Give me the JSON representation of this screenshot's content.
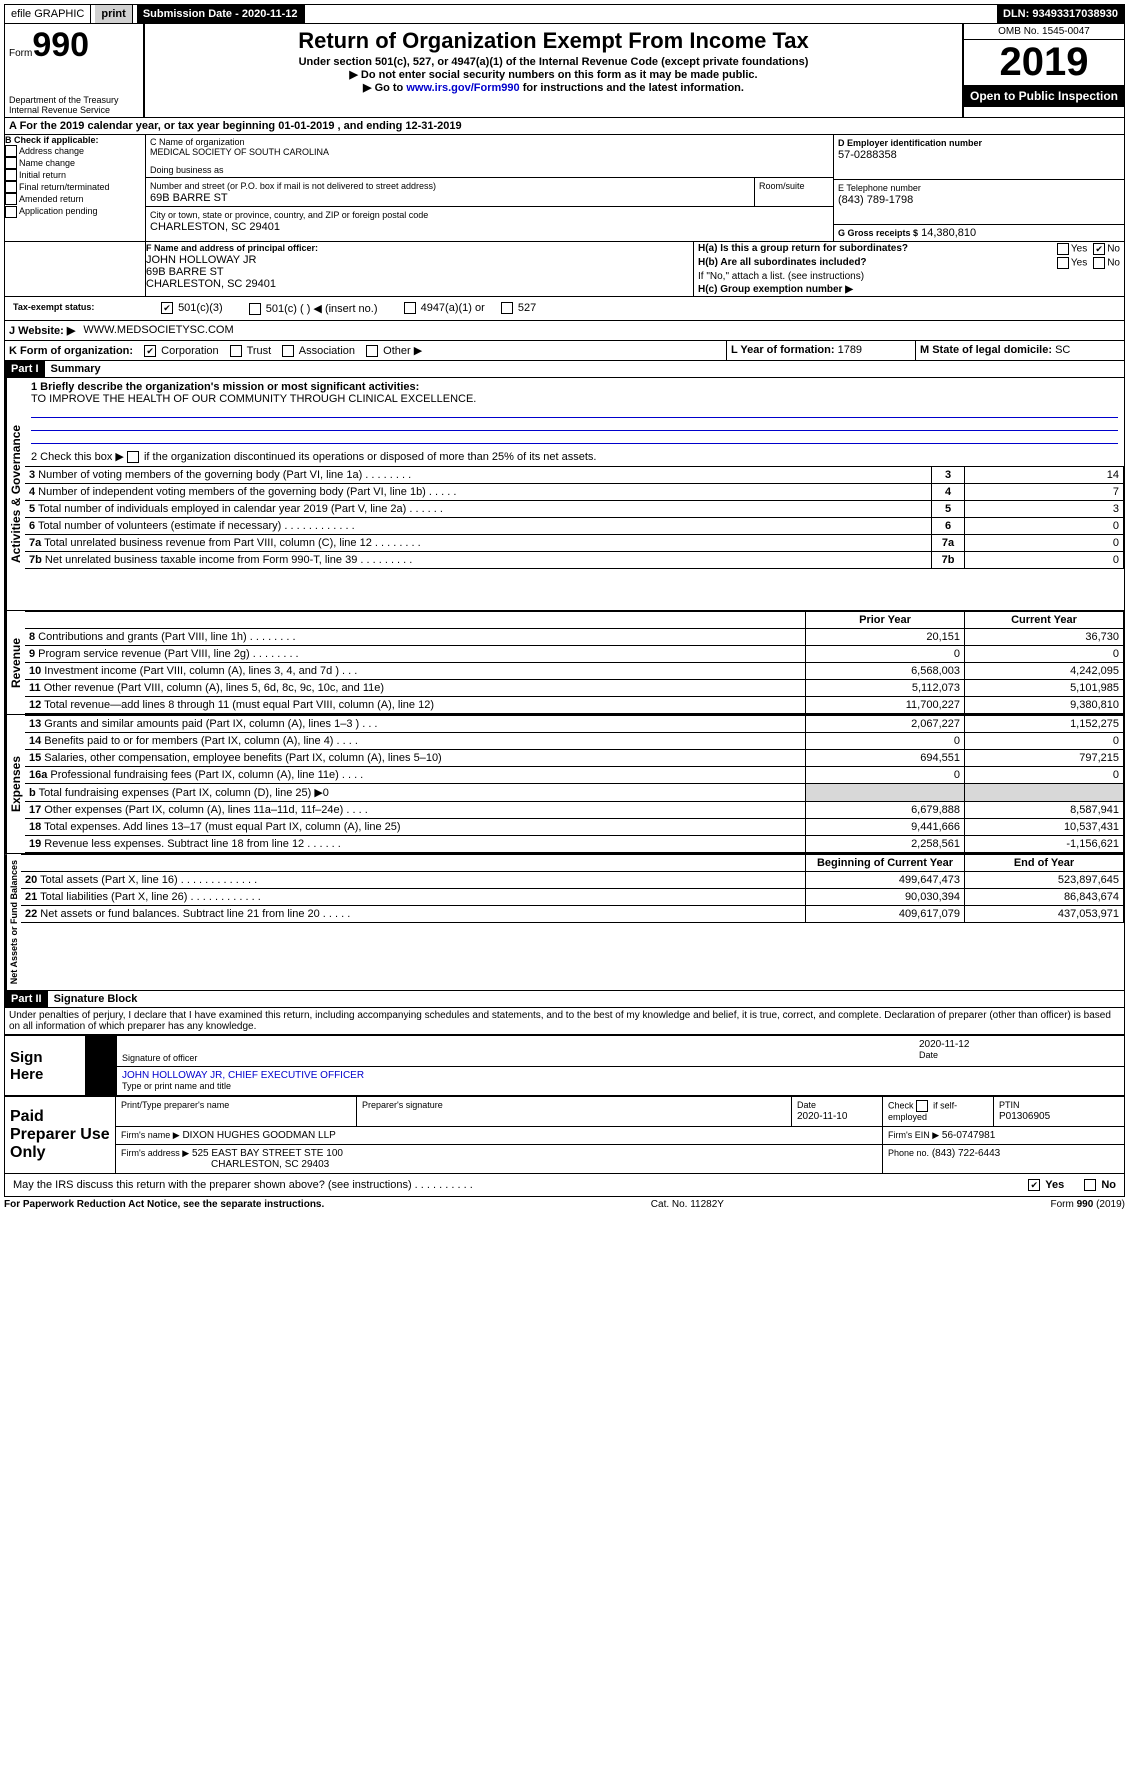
{
  "topbar": {
    "efile": "efile GRAPHIC",
    "print": "print",
    "submission_label": "Submission Date -",
    "submission_date": "2020-11-12",
    "dln_label": "DLN:",
    "dln": "93493317038930"
  },
  "header": {
    "form_word": "Form",
    "form_num": "990",
    "dept": "Department of the Treasury",
    "irs": "Internal Revenue Service",
    "title": "Return of Organization Exempt From Income Tax",
    "sub1": "Under section 501(c), 527, or 4947(a)(1) of the Internal Revenue Code (except private foundations)",
    "sub2": "▶ Do not enter social security numbers on this form as it may be made public.",
    "sub3_pre": "▶ Go to ",
    "sub3_link": "www.irs.gov/Form990",
    "sub3_post": " for instructions and the latest information.",
    "omb": "OMB No. 1545-0047",
    "year": "2019",
    "open": "Open to Public Inspection"
  },
  "period": {
    "label_a": "A For the 2019 calendar year, or tax year beginning ",
    "begin": "01-01-2019",
    "mid": " , and ending ",
    "end": "12-31-2019"
  },
  "boxB": {
    "label": "B Check if applicable:",
    "items": [
      "Address change",
      "Name change",
      "Initial return",
      "Final return/terminated",
      "Amended return",
      "Application pending"
    ]
  },
  "boxC": {
    "name_label": "C Name of organization",
    "name": "MEDICAL SOCIETY OF SOUTH CAROLINA",
    "dba_label": "Doing business as",
    "addr_label": "Number and street (or P.O. box if mail is not delivered to street address)",
    "room_label": "Room/suite",
    "addr": "69B BARRE ST",
    "city_label": "City or town, state or province, country, and ZIP or foreign postal code",
    "city": "CHARLESTON, SC  29401"
  },
  "boxD": {
    "label": "D Employer identification number",
    "val": "57-0288358"
  },
  "boxE": {
    "label": "E Telephone number",
    "val": "(843) 789-1798"
  },
  "boxG": {
    "label": "G Gross receipts $",
    "val": "14,380,810"
  },
  "boxF": {
    "label": "F  Name and address of principal officer:",
    "name": "JOHN HOLLOWAY JR",
    "addr1": "69B BARRE ST",
    "addr2": "CHARLESTON, SC  29401"
  },
  "boxH": {
    "a": "H(a)  Is this a group return for subordinates?",
    "b": "H(b)  Are all subordinates included?",
    "note": "If \"No,\" attach a list. (see instructions)",
    "c": "H(c)  Group exemption number ▶",
    "yes": "Yes",
    "no": "No"
  },
  "boxI": {
    "label": "Tax-exempt status:",
    "o1": "501(c)(3)",
    "o2": "501(c) (   ) ◀ (insert no.)",
    "o3": "4947(a)(1) or",
    "o4": "527"
  },
  "boxJ": {
    "label": "J   Website: ▶",
    "val": "WWW.MEDSOCIETYSC.COM"
  },
  "boxK": {
    "label": "K Form of organization:",
    "o1": "Corporation",
    "o2": "Trust",
    "o3": "Association",
    "o4": "Other ▶"
  },
  "boxL": {
    "label": "L Year of formation:",
    "val": "1789"
  },
  "boxM": {
    "label": "M State of legal domicile:",
    "val": "SC"
  },
  "part1": {
    "tag": "Part I",
    "title": "Summary"
  },
  "summary": {
    "q1": "1  Briefly describe the organization's mission or most significant activities:",
    "mission": "TO IMPROVE THE HEALTH OF OUR COMMUNITY THROUGH CLINICAL EXCELLENCE.",
    "q2_pre": "2  Check this box ▶",
    "q2": " if the organization discontinued its operations or disposed of more than 25% of its net assets.",
    "lines_ag": [
      {
        "n": "3",
        "t": "Number of voting members of the governing body (Part VI, line 1a)   .    .    .    .    .    .    .    .",
        "v": "14"
      },
      {
        "n": "4",
        "t": "Number of independent voting members of the governing body (Part VI, line 1b)   .    .    .    .    .",
        "v": "7"
      },
      {
        "n": "5",
        "t": "Total number of individuals employed in calendar year 2019 (Part V, line 2a)   .    .    .    .    .    .",
        "v": "3"
      },
      {
        "n": "6",
        "t": "Total number of volunteers (estimate if necessary)   .    .    .    .    .    .    .    .    .    .    .    .",
        "v": "0"
      },
      {
        "n": "7a",
        "t": "Total unrelated business revenue from Part VIII, column (C), line 12   .    .    .    .    .    .    .    .",
        "v": "0"
      },
      {
        "n": "7b",
        "t": "Net unrelated business taxable income from Form 990-T, line 39   .    .    .    .    .    .    .    .    .",
        "v": "0"
      }
    ],
    "col_prior": "Prior Year",
    "col_current": "Current Year",
    "rev": [
      {
        "n": "8",
        "t": "Contributions and grants (Part VIII, line 1h)   .    .    .    .    .    .    .    .",
        "p": "20,151",
        "c": "36,730"
      },
      {
        "n": "9",
        "t": "Program service revenue (Part VIII, line 2g)   .    .    .    .    .    .    .    .",
        "p": "0",
        "c": "0"
      },
      {
        "n": "10",
        "t": "Investment income (Part VIII, column (A), lines 3, 4, and 7d )   .    .    .",
        "p": "6,568,003",
        "c": "4,242,095"
      },
      {
        "n": "11",
        "t": "Other revenue (Part VIII, column (A), lines 5, 6d, 8c, 9c, 10c, and 11e)",
        "p": "5,112,073",
        "c": "5,101,985"
      },
      {
        "n": "12",
        "t": "Total revenue—add lines 8 through 11 (must equal Part VIII, column (A), line 12)",
        "p": "11,700,227",
        "c": "9,380,810"
      }
    ],
    "exp": [
      {
        "n": "13",
        "t": "Grants and similar amounts paid (Part IX, column (A), lines 1–3 )   .    .    .",
        "p": "2,067,227",
        "c": "1,152,275"
      },
      {
        "n": "14",
        "t": "Benefits paid to or for members (Part IX, column (A), line 4)   .    .    .    .",
        "p": "0",
        "c": "0"
      },
      {
        "n": "15",
        "t": "Salaries, other compensation, employee benefits (Part IX, column (A), lines 5–10)",
        "p": "694,551",
        "c": "797,215"
      },
      {
        "n": "16a",
        "t": "Professional fundraising fees (Part IX, column (A), line 11e)   .    .    .    .",
        "p": "0",
        "c": "0"
      },
      {
        "n": "b",
        "t": "Total fundraising expenses (Part IX, column (D), line 25) ▶0",
        "p": "",
        "c": ""
      },
      {
        "n": "17",
        "t": "Other expenses (Part IX, column (A), lines 11a–11d, 11f–24e)   .    .    .    .",
        "p": "6,679,888",
        "c": "8,587,941"
      },
      {
        "n": "18",
        "t": "Total expenses. Add lines 13–17 (must equal Part IX, column (A), line 25)",
        "p": "9,441,666",
        "c": "10,537,431"
      },
      {
        "n": "19",
        "t": "Revenue less expenses. Subtract line 18 from line 12   .    .    .    .    .    .",
        "p": "2,258,561",
        "c": "-1,156,621"
      }
    ],
    "col_begin": "Beginning of Current Year",
    "col_end": "End of Year",
    "net": [
      {
        "n": "20",
        "t": "Total assets (Part X, line 16)   .    .    .    .    .    .    .    .    .    .    .    .    .",
        "p": "499,647,473",
        "c": "523,897,645"
      },
      {
        "n": "21",
        "t": "Total liabilities (Part X, line 26)   .    .    .    .    .    .    .    .    .    .    .    .",
        "p": "90,030,394",
        "c": "86,843,674"
      },
      {
        "n": "22",
        "t": "Net assets or fund balances. Subtract line 21 from line 20   .    .    .    .    .",
        "p": "409,617,079",
        "c": "437,053,971"
      }
    ],
    "side_ag": "Activities & Governance",
    "side_rev": "Revenue",
    "side_exp": "Expenses",
    "side_net": "Net Assets or Fund Balances"
  },
  "part2": {
    "tag": "Part II",
    "title": "Signature Block"
  },
  "perjury": "Under penalties of perjury, I declare that I have examined this return, including accompanying schedules and statements, and to the best of my knowledge and belief, it is true, correct, and complete. Declaration of preparer (other than officer) is based on all information of which preparer has any knowledge.",
  "sign": {
    "here": "Sign Here",
    "sig_label": "Signature of officer",
    "date": "2020-11-12",
    "date_label": "Date",
    "name": "JOHN HOLLOWAY JR, CHIEF EXECUTIVE OFFICER",
    "name_label": "Type or print name and title"
  },
  "paid": {
    "title": "Paid Preparer Use Only",
    "col1": "Print/Type preparer's name",
    "col2": "Preparer's signature",
    "col3": "Date",
    "date": "2020-11-10",
    "col4_a": "Check",
    "col4_b": "if self-employed",
    "col5": "PTIN",
    "ptin": "P01306905",
    "firm_name_l": "Firm's name     ▶",
    "firm_name": "DIXON HUGHES GOODMAN LLP",
    "firm_ein_l": "Firm's EIN ▶",
    "firm_ein": "56-0747981",
    "firm_addr_l": "Firm's address ▶",
    "firm_addr1": "525 EAST BAY STREET STE 100",
    "firm_addr2": "CHARLESTON, SC  29403",
    "phone_l": "Phone no.",
    "phone": "(843) 722-6443"
  },
  "discuss": {
    "q": "May the IRS discuss this return with the preparer shown above? (see instructions)   .    .    .    .    .    .    .    .    .    .",
    "yes": "Yes",
    "no": "No"
  },
  "footer": {
    "left": "For Paperwork Reduction Act Notice, see the separate instructions.",
    "mid": "Cat. No. 11282Y",
    "right": "Form 990 (2019)"
  }
}
